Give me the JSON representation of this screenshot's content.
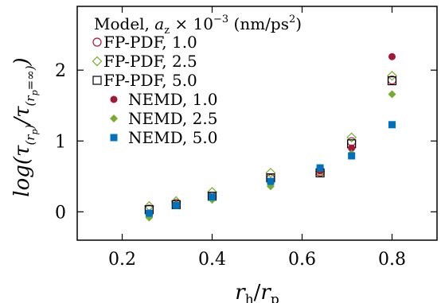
{
  "chart_data": {
    "type": "scatter",
    "xlabel": "r_h/r_p",
    "ylabel": "log(τ(r_p)/τ(r_p=∞))",
    "xlim": [
      0.1,
      0.9
    ],
    "ylim": [
      -0.4,
      2.9
    ],
    "xticks": [
      0.2,
      0.4,
      0.6,
      0.8
    ],
    "xtick_labels": [
      "0.2",
      "0.4",
      "0.6",
      "0.8"
    ],
    "yticks": [
      0,
      1,
      2
    ],
    "ytick_labels": [
      "0",
      "1",
      "2"
    ],
    "grid": false,
    "legend": {
      "placement": "top-left",
      "title": "Model, a_z × 10^-3 (nm/ps^2)"
    },
    "series": [
      {
        "name": "FP-PDF, 1.0",
        "marker": "circle-open",
        "color": "#a31836",
        "x": [
          0.26,
          0.32,
          0.4,
          0.53,
          0.64,
          0.71,
          0.8
        ],
        "y": [
          0.04,
          0.12,
          0.22,
          0.47,
          0.56,
          0.99,
          1.86
        ]
      },
      {
        "name": "FP-PDF, 2.5",
        "marker": "diamond-open",
        "color": "#77ac30",
        "x": [
          0.26,
          0.32,
          0.4,
          0.53,
          0.64,
          0.71,
          0.8
        ],
        "y": [
          0.08,
          0.15,
          0.28,
          0.55,
          0.57,
          1.05,
          1.92
        ]
      },
      {
        "name": "FP-PDF, 5.0",
        "marker": "square-open",
        "color": "#000000",
        "x": [
          0.26,
          0.32,
          0.4,
          0.53,
          0.64,
          0.71,
          0.8
        ],
        "y": [
          0.03,
          0.1,
          0.22,
          0.48,
          0.55,
          0.96,
          1.85
        ]
      },
      {
        "name": "NEMD, 1.0",
        "marker": "circle-filled",
        "color": "#a31836",
        "x": [
          0.26,
          0.32,
          0.4,
          0.53,
          0.64,
          0.71,
          0.8
        ],
        "y": [
          -0.03,
          0.1,
          0.2,
          0.42,
          0.58,
          0.9,
          2.19
        ]
      },
      {
        "name": "NEMD, 2.5",
        "marker": "diamond-filled",
        "color": "#77ac30",
        "x": [
          0.26,
          0.32,
          0.4,
          0.53,
          0.64,
          0.71,
          0.8
        ],
        "y": [
          -0.08,
          0.1,
          0.17,
          0.36,
          0.62,
          0.82,
          1.66
        ]
      },
      {
        "name": "NEMD, 5.0",
        "marker": "square-filled",
        "color": "#0072bd",
        "x": [
          0.26,
          0.32,
          0.4,
          0.53,
          0.64,
          0.71,
          0.8
        ],
        "y": [
          -0.02,
          0.09,
          0.21,
          0.43,
          0.62,
          0.79,
          1.23
        ]
      }
    ]
  }
}
